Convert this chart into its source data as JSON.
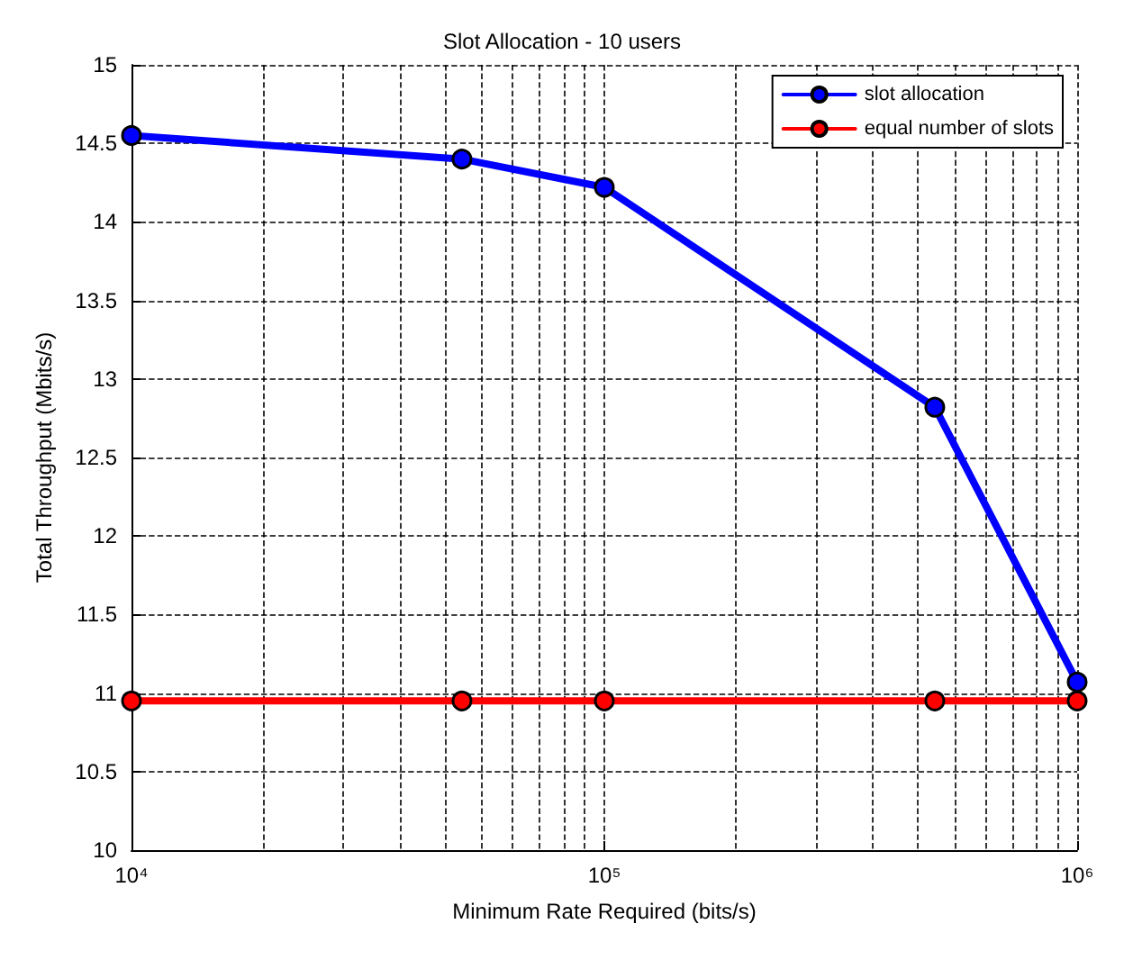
{
  "chart_data": {
    "type": "line",
    "title": "Slot Allocation - 10 users",
    "xlabel": "Minimum Rate Required (bits/s)",
    "ylabel": "Total Throughput (Mbits/s)",
    "x": [
      10000,
      50000,
      100000,
      500000,
      1000000
    ],
    "series": [
      {
        "name": "slot allocation",
        "color": "#0000ff",
        "values": [
          14.55,
          14.4,
          14.22,
          12.82,
          11.07
        ]
      },
      {
        "name": "equal number of slots",
        "color": "#ff0000",
        "values": [
          10.95,
          10.95,
          10.95,
          10.95,
          10.95
        ]
      }
    ],
    "xlim": [
      10000,
      1000000
    ],
    "xticks": [
      {
        "value": 10000,
        "label": "10⁴"
      },
      {
        "value": 100000,
        "label": "10⁵"
      },
      {
        "value": 1000000,
        "label": "10⁶"
      }
    ],
    "ylim": [
      10,
      15
    ],
    "yticks": [
      10,
      10.5,
      11,
      11.5,
      12,
      12.5,
      13,
      13.5,
      14,
      14.5,
      15
    ],
    "log": "x",
    "grid": true,
    "legend": "top right",
    "marker": "circle",
    "line_style": "solid"
  }
}
